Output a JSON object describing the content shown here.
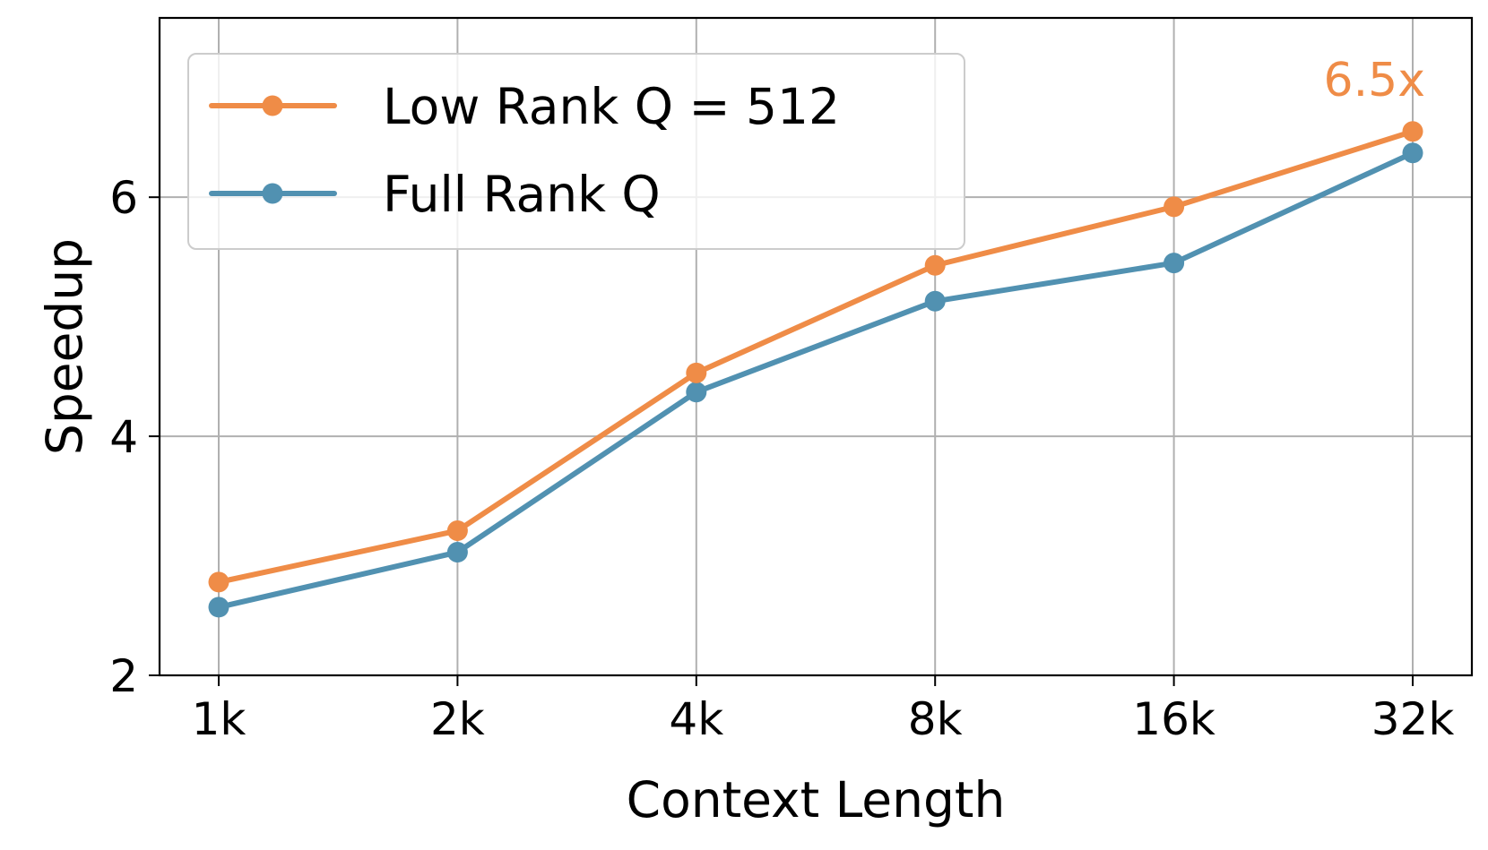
{
  "chart_data": {
    "type": "line",
    "xlabel": "Context Length",
    "ylabel": "Speedup",
    "categories": [
      "1k",
      "2k",
      "4k",
      "8k",
      "16k",
      "32k"
    ],
    "ylim": [
      2,
      7.5
    ],
    "yticks": [
      2,
      4,
      6
    ],
    "grid": true,
    "legend_position": "top-left",
    "series": [
      {
        "name": "Low Rank Q = 512",
        "color": "#ef8c47",
        "values": [
          2.78,
          3.21,
          4.53,
          5.43,
          5.92,
          6.55
        ]
      },
      {
        "name": "Full Rank Q",
        "color": "#5191b1",
        "values": [
          2.57,
          3.03,
          4.37,
          5.13,
          5.45,
          6.37
        ]
      }
    ],
    "annotations": [
      {
        "text": "6.5x",
        "color": "#ef8c47",
        "anchor_category": "32k"
      }
    ]
  }
}
